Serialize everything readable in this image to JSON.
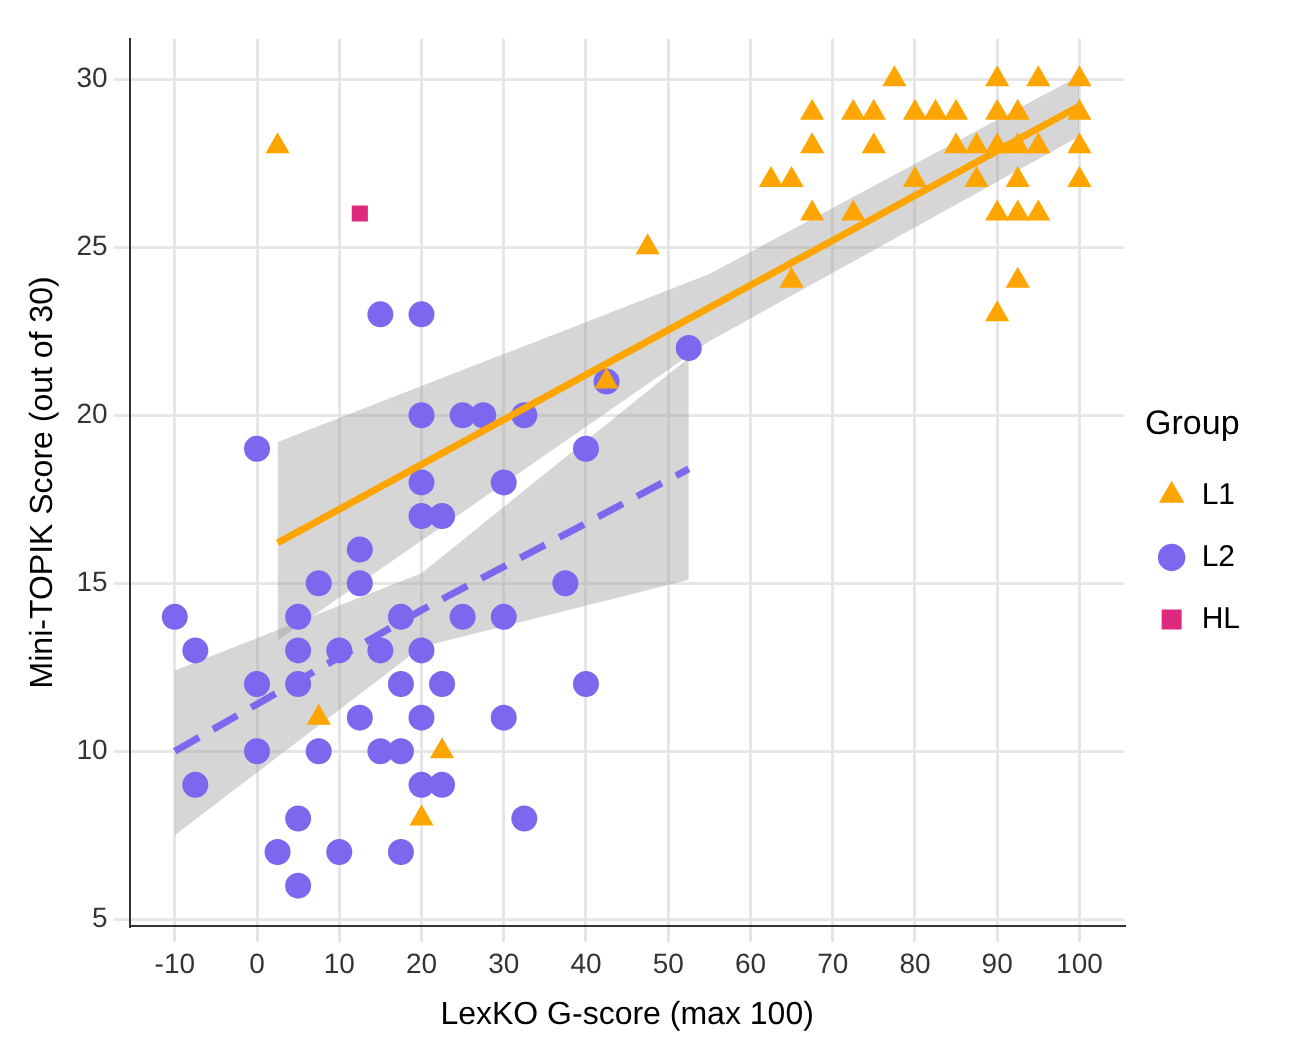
{
  "chart_data": {
    "type": "scatter",
    "xlabel": "LexKO G-score (max 100)",
    "ylabel": "Mini-TOPIK Score (out of 30)",
    "legend_title": "Group",
    "legend": "right",
    "grid": true,
    "xlim": [
      -15.5,
      105.5
    ],
    "xticks": [
      -10,
      0,
      10,
      20,
      30,
      40,
      50,
      60,
      70,
      80,
      90,
      100
    ],
    "ylim": [
      4.8,
      31.2
    ],
    "yticks": [
      5,
      10,
      15,
      20,
      25,
      30
    ],
    "series": [
      {
        "name": "L1",
        "type": "scatter",
        "marker": "triangle",
        "color": "#ffa500",
        "x": [
          2.5,
          7.5,
          22.5,
          20,
          42.5,
          47.5,
          77.5,
          90,
          95,
          100,
          67.5,
          72.5,
          75,
          80,
          82.5,
          85,
          90,
          92.5,
          100,
          67.5,
          75,
          85,
          87.5,
          90,
          92.5,
          95,
          100,
          62.5,
          65,
          80,
          87.5,
          92.5,
          100,
          67.5,
          72.5,
          90,
          92.5,
          95,
          65,
          92.5,
          90
        ],
        "values": [
          28,
          11,
          10,
          8,
          21,
          25,
          30,
          30,
          30,
          30,
          29,
          29,
          29,
          29,
          29,
          29,
          29,
          29,
          29,
          28,
          28,
          28,
          28,
          28,
          28,
          28,
          28,
          27,
          27,
          27,
          27,
          27,
          27,
          26,
          26,
          26,
          26,
          26,
          24,
          24,
          23
        ]
      },
      {
        "name": "L2",
        "type": "scatter",
        "marker": "circle",
        "color": "#7b68ee",
        "x": [
          15,
          20,
          20,
          25,
          27.5,
          32.5,
          0,
          40,
          20,
          30,
          20,
          22.5,
          12.5,
          7.5,
          12.5,
          37.5,
          -10,
          5,
          17.5,
          25,
          30,
          -7.5,
          5,
          10,
          15,
          20,
          0,
          5,
          17.5,
          22.5,
          40,
          12.5,
          20,
          30,
          0,
          7.5,
          15,
          17.5,
          -7.5,
          20,
          22.5,
          5,
          32.5,
          2.5,
          10,
          17.5,
          5,
          42.5,
          52.5
        ],
        "values": [
          23,
          23,
          20,
          20,
          20,
          20,
          19,
          19,
          18,
          18,
          17,
          17,
          16,
          15,
          15,
          15,
          14,
          14,
          14,
          14,
          14,
          13,
          13,
          13,
          13,
          13,
          12,
          12,
          12,
          12,
          12,
          11,
          11,
          11,
          10,
          10,
          10,
          10,
          9,
          9,
          9,
          8,
          8,
          7,
          7,
          7,
          6,
          21,
          22
        ]
      },
      {
        "name": "HL",
        "type": "scatter",
        "marker": "square",
        "color": "#dd2a7f",
        "x": [
          12.5
        ],
        "values": [
          26
        ]
      },
      {
        "type": "line",
        "line_style": "solid",
        "color": "#ffa500",
        "x": [
          2.5,
          55,
          100
        ],
        "values": [
          16.2,
          23.2,
          29.2
        ],
        "lower": [
          13.3,
          22.2,
          28.3
        ],
        "upper": [
          19.2,
          24.2,
          30.1
        ]
      },
      {
        "type": "line",
        "line_style": "dashed",
        "color": "#7b68ee",
        "x": [
          -10,
          20,
          52.5
        ],
        "values": [
          10,
          14.2,
          18.4
        ],
        "lower": [
          7.5,
          13.1,
          15.1
        ],
        "upper": [
          12.4,
          15.3,
          21.7
        ]
      }
    ]
  }
}
